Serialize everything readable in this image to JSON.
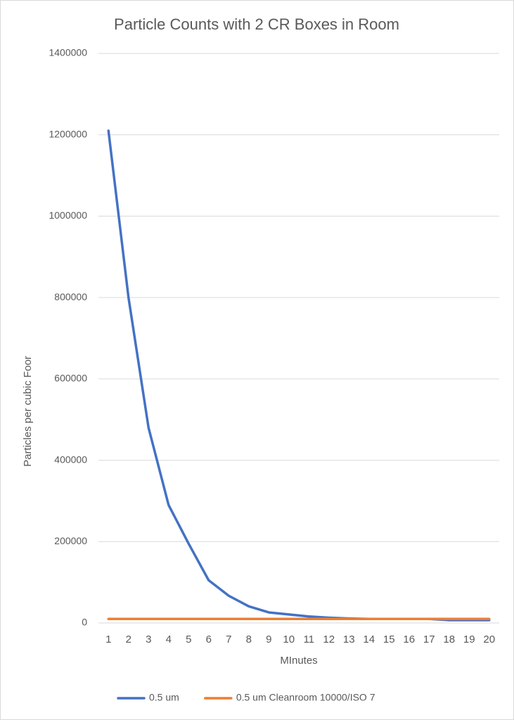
{
  "chart_data": {
    "type": "line",
    "title": "Particle Counts with 2 CR Boxes in Room",
    "x_label": "MInutes",
    "y_label": "Particles per cubic Foor",
    "categories": [
      "1",
      "2",
      "3",
      "4",
      "5",
      "6",
      "7",
      "8",
      "9",
      "10",
      "11",
      "12",
      "13",
      "14",
      "15",
      "16",
      "17",
      "18",
      "19",
      "20"
    ],
    "series": [
      {
        "name": "0.5 um",
        "color": "#4472c4",
        "values": [
          1210000,
          800000,
          480000,
          290000,
          195000,
          105000,
          67000,
          41000,
          26000,
          21000,
          16000,
          13000,
          11000,
          10000,
          10000,
          10000,
          10000,
          7000,
          7000,
          7000
        ]
      },
      {
        "name": "0.5 um Cleanroom 10000/ISO 7",
        "color": "#ed7d31",
        "values": [
          10000,
          10000,
          10000,
          10000,
          10000,
          10000,
          10000,
          10000,
          10000,
          10000,
          10000,
          10000,
          10000,
          10000,
          10000,
          10000,
          10000,
          10000,
          10000,
          10000
        ]
      }
    ],
    "ylim": [
      0,
      1400000
    ],
    "yticks": [
      0,
      200000,
      400000,
      600000,
      800000,
      1000000,
      1200000,
      1400000
    ],
    "grid": true,
    "legend": "bottom"
  }
}
